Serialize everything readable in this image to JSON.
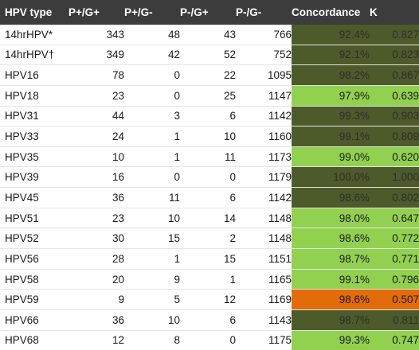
{
  "table": {
    "headers": [
      "HPV type",
      "P+/G+",
      "P+/G-",
      "P-/G+",
      "P-/G-",
      "Concordance",
      "K"
    ],
    "rows": [
      {
        "type": "14hrHPV*",
        "pp": "343",
        "pn": "48",
        "np": "43",
        "nn": "766",
        "concordance": "92.4%",
        "k": "0.827",
        "shade": "dark"
      },
      {
        "type": "14hrHPV†",
        "pp": "349",
        "pn": "42",
        "np": "52",
        "nn": "752",
        "concordance": "92.1%",
        "k": "0.823",
        "shade": "dark"
      },
      {
        "type": "HPV16",
        "pp": "78",
        "pn": "0",
        "np": "22",
        "nn": "1095",
        "concordance": "98.2%",
        "k": "0.867",
        "shade": "dark"
      },
      {
        "type": "HPV18",
        "pp": "23",
        "pn": "0",
        "np": "25",
        "nn": "1147",
        "concordance": "97.9%",
        "k": "0.639",
        "shade": "light"
      },
      {
        "type": "HPV31",
        "pp": "44",
        "pn": "3",
        "np": "6",
        "nn": "1142",
        "concordance": "99.3%",
        "k": "0.903",
        "shade": "dark"
      },
      {
        "type": "HPV33",
        "pp": "24",
        "pn": "1",
        "np": "10",
        "nn": "1160",
        "concordance": "99.1%",
        "k": "0.809",
        "shade": "dark"
      },
      {
        "type": "HPV35",
        "pp": "10",
        "pn": "1",
        "np": "11",
        "nn": "1173",
        "concordance": "99.0%",
        "k": "0.620",
        "shade": "light"
      },
      {
        "type": "HPV39",
        "pp": "16",
        "pn": "0",
        "np": "0",
        "nn": "1179",
        "concordance": "100.0%",
        "k": "1.000",
        "shade": "dark"
      },
      {
        "type": "HPV45",
        "pp": "36",
        "pn": "11",
        "np": "6",
        "nn": "1142",
        "concordance": "98.6%",
        "k": "0.802",
        "shade": "dark"
      },
      {
        "type": "HPV51",
        "pp": "23",
        "pn": "10",
        "np": "14",
        "nn": "1148",
        "concordance": "98.0%",
        "k": "0.647",
        "shade": "light"
      },
      {
        "type": "HPV52",
        "pp": "30",
        "pn": "15",
        "np": "2",
        "nn": "1148",
        "concordance": "98.6%",
        "k": "0.772",
        "shade": "light"
      },
      {
        "type": "HPV56",
        "pp": "28",
        "pn": "1",
        "np": "15",
        "nn": "1151",
        "concordance": "98.7%",
        "k": "0.771",
        "shade": "light"
      },
      {
        "type": "HPV58",
        "pp": "20",
        "pn": "9",
        "np": "1",
        "nn": "1165",
        "concordance": "99.1%",
        "k": "0.796",
        "shade": "light"
      },
      {
        "type": "HPV59",
        "pp": "9",
        "pn": "5",
        "np": "12",
        "nn": "1169",
        "concordance": "98.6%",
        "k": "0.507",
        "shade": "orange"
      },
      {
        "type": "HPV66",
        "pp": "36",
        "pn": "10",
        "np": "6",
        "nn": "1143",
        "concordance": "98.7%",
        "k": "0.811",
        "shade": "dark"
      },
      {
        "type": "HPV68",
        "pp": "12",
        "pn": "8",
        "np": "0",
        "nn": "1175",
        "concordance": "99.3%",
        "k": "0.747",
        "shade": "light"
      }
    ]
  },
  "colors": {
    "header_bg": "#3c3c3c",
    "dark": "#4d5a2a",
    "light": "#92d050",
    "orange": "#e26b0a"
  }
}
